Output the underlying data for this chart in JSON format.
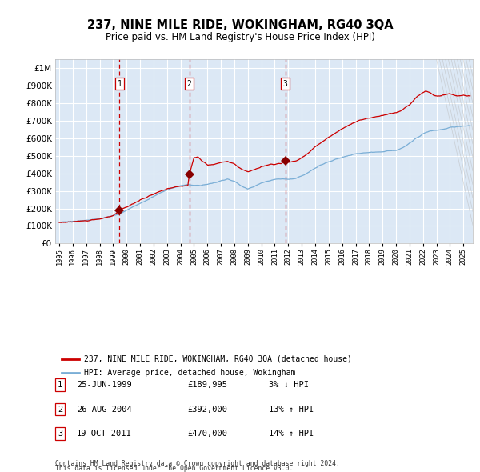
{
  "title": "237, NINE MILE RIDE, WOKINGHAM, RG40 3QA",
  "subtitle": "Price paid vs. HM Land Registry's House Price Index (HPI)",
  "legend_line1": "237, NINE MILE RIDE, WOKINGHAM, RG40 3QA (detached house)",
  "legend_line2": "HPI: Average price, detached house, Wokingham",
  "footnote1": "Contains HM Land Registry data © Crown copyright and database right 2024.",
  "footnote2": "This data is licensed under the Open Government Licence v3.0.",
  "transactions": [
    {
      "num": 1,
      "date": "25-JUN-1999",
      "price": 189995,
      "pct": "3%",
      "dir": "↓",
      "year_x": 1999.48
    },
    {
      "num": 2,
      "date": "26-AUG-2004",
      "price": 392000,
      "pct": "13%",
      "dir": "↑",
      "year_x": 2004.65
    },
    {
      "num": 3,
      "date": "19-OCT-2011",
      "price": 470000,
      "pct": "14%",
      "dir": "↑",
      "year_x": 2011.79
    }
  ],
  "hpi_color": "#7aaed6",
  "price_color": "#cc0000",
  "plot_bg": "#dce8f5",
  "grid_color": "#ffffff",
  "dashed_color": "#cc0000",
  "marker_color": "#880000",
  "ylim": [
    0,
    1050000
  ],
  "yticks": [
    0,
    100000,
    200000,
    300000,
    400000,
    500000,
    600000,
    700000,
    800000,
    900000,
    1000000
  ],
  "xlim_start": 1994.7,
  "xlim_end": 2025.7,
  "hpi_anchors": [
    [
      1995.0,
      122000
    ],
    [
      1996.0,
      126000
    ],
    [
      1997.0,
      132000
    ],
    [
      1998.0,
      142000
    ],
    [
      1999.0,
      158000
    ],
    [
      1999.5,
      170000
    ],
    [
      2000.0,
      190000
    ],
    [
      2000.5,
      210000
    ],
    [
      2001.0,
      228000
    ],
    [
      2001.5,
      248000
    ],
    [
      2002.0,
      268000
    ],
    [
      2002.5,
      288000
    ],
    [
      2003.0,
      305000
    ],
    [
      2003.5,
      318000
    ],
    [
      2004.0,
      328000
    ],
    [
      2004.5,
      335000
    ],
    [
      2005.0,
      332000
    ],
    [
      2005.5,
      330000
    ],
    [
      2006.0,
      338000
    ],
    [
      2006.5,
      345000
    ],
    [
      2007.0,
      358000
    ],
    [
      2007.5,
      365000
    ],
    [
      2008.0,
      355000
    ],
    [
      2008.5,
      330000
    ],
    [
      2009.0,
      310000
    ],
    [
      2009.5,
      325000
    ],
    [
      2010.0,
      345000
    ],
    [
      2010.5,
      355000
    ],
    [
      2011.0,
      365000
    ],
    [
      2011.5,
      368000
    ],
    [
      2012.0,
      365000
    ],
    [
      2012.5,
      370000
    ],
    [
      2013.0,
      385000
    ],
    [
      2013.5,
      405000
    ],
    [
      2014.0,
      430000
    ],
    [
      2014.5,
      450000
    ],
    [
      2015.0,
      465000
    ],
    [
      2015.5,
      478000
    ],
    [
      2016.0,
      490000
    ],
    [
      2016.5,
      500000
    ],
    [
      2017.0,
      510000
    ],
    [
      2017.5,
      515000
    ],
    [
      2018.0,
      518000
    ],
    [
      2018.5,
      520000
    ],
    [
      2019.0,
      522000
    ],
    [
      2019.5,
      528000
    ],
    [
      2020.0,
      530000
    ],
    [
      2020.5,
      545000
    ],
    [
      2021.0,
      570000
    ],
    [
      2021.5,
      598000
    ],
    [
      2022.0,
      625000
    ],
    [
      2022.5,
      640000
    ],
    [
      2023.0,
      645000
    ],
    [
      2023.5,
      650000
    ],
    [
      2024.0,
      660000
    ],
    [
      2024.5,
      665000
    ],
    [
      2025.0,
      668000
    ],
    [
      2025.5,
      670000
    ]
  ],
  "price_anchors": [
    [
      1995.0,
      120000
    ],
    [
      1996.0,
      124000
    ],
    [
      1997.0,
      130000
    ],
    [
      1998.0,
      140000
    ],
    [
      1999.0,
      158000
    ],
    [
      1999.48,
      189995
    ],
    [
      1999.6,
      196000
    ],
    [
      2000.0,
      208000
    ],
    [
      2000.5,
      228000
    ],
    [
      2001.0,
      248000
    ],
    [
      2001.5,
      265000
    ],
    [
      2002.0,
      282000
    ],
    [
      2002.5,
      298000
    ],
    [
      2003.0,
      312000
    ],
    [
      2003.5,
      320000
    ],
    [
      2004.0,
      325000
    ],
    [
      2004.55,
      330000
    ],
    [
      2004.65,
      392000
    ],
    [
      2005.0,
      488000
    ],
    [
      2005.3,
      495000
    ],
    [
      2005.6,
      470000
    ],
    [
      2006.0,
      448000
    ],
    [
      2006.5,
      450000
    ],
    [
      2007.0,
      462000
    ],
    [
      2007.5,
      468000
    ],
    [
      2008.0,
      452000
    ],
    [
      2008.5,
      425000
    ],
    [
      2009.0,
      408000
    ],
    [
      2009.5,
      420000
    ],
    [
      2010.0,
      435000
    ],
    [
      2010.5,
      448000
    ],
    [
      2011.0,
      452000
    ],
    [
      2011.5,
      458000
    ],
    [
      2011.79,
      470000
    ],
    [
      2012.0,
      462000
    ],
    [
      2012.5,
      468000
    ],
    [
      2013.0,
      488000
    ],
    [
      2013.5,
      515000
    ],
    [
      2014.0,
      550000
    ],
    [
      2014.5,
      578000
    ],
    [
      2015.0,
      605000
    ],
    [
      2015.5,
      628000
    ],
    [
      2016.0,
      655000
    ],
    [
      2016.5,
      672000
    ],
    [
      2017.0,
      692000
    ],
    [
      2017.5,
      705000
    ],
    [
      2018.0,
      715000
    ],
    [
      2018.5,
      722000
    ],
    [
      2019.0,
      728000
    ],
    [
      2019.5,
      738000
    ],
    [
      2020.0,
      745000
    ],
    [
      2020.5,
      762000
    ],
    [
      2021.0,
      790000
    ],
    [
      2021.3,
      815000
    ],
    [
      2021.6,
      840000
    ],
    [
      2021.9,
      855000
    ],
    [
      2022.2,
      868000
    ],
    [
      2022.5,
      860000
    ],
    [
      2022.8,
      845000
    ],
    [
      2023.1,
      838000
    ],
    [
      2023.4,
      842000
    ],
    [
      2023.7,
      848000
    ],
    [
      2024.0,
      855000
    ],
    [
      2024.3,
      845000
    ],
    [
      2024.6,
      840000
    ],
    [
      2025.0,
      843000
    ],
    [
      2025.5,
      840000
    ]
  ]
}
